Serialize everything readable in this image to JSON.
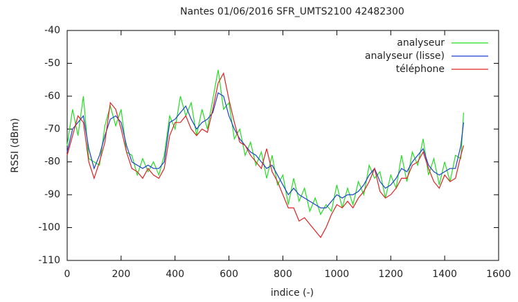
{
  "chart_data": {
    "type": "line",
    "title": "Nantes 01/06/2016 SFR_UMTS2100 42482300",
    "x_label": "indice (-)",
    "y_label": "RSSI (dBm)",
    "xlim": [
      0,
      1600
    ],
    "xticks": [
      0,
      200,
      400,
      600,
      800,
      1000,
      1200,
      1400,
      1600
    ],
    "ylim": [
      -110,
      -40
    ],
    "yticks": [
      -110,
      -100,
      -90,
      -80,
      -70,
      -60,
      -50,
      -40
    ],
    "grid": false,
    "legend": "top-right",
    "x": [
      0,
      20,
      40,
      60,
      80,
      100,
      120,
      140,
      160,
      180,
      200,
      220,
      240,
      260,
      280,
      300,
      320,
      340,
      360,
      380,
      400,
      420,
      440,
      460,
      480,
      500,
      520,
      540,
      560,
      580,
      600,
      620,
      640,
      660,
      680,
      700,
      720,
      740,
      760,
      780,
      800,
      820,
      840,
      860,
      880,
      900,
      920,
      940,
      960,
      980,
      1000,
      1020,
      1040,
      1060,
      1080,
      1100,
      1120,
      1140,
      1160,
      1180,
      1200,
      1220,
      1240,
      1260,
      1280,
      1300,
      1320,
      1340,
      1360,
      1380,
      1400,
      1420,
      1440,
      1460,
      1470
    ],
    "series": [
      {
        "name": "analyseur",
        "color": "#22dd22",
        "values": [
          -75,
          -64,
          -72,
          -60,
          -79,
          -80,
          -81,
          -69,
          -63,
          -69,
          -64,
          -77,
          -78,
          -84,
          -79,
          -83,
          -80,
          -84,
          -78,
          -66,
          -70,
          -60,
          -66,
          -62,
          -72,
          -64,
          -70,
          -61,
          -52,
          -64,
          -62,
          -73,
          -70,
          -78,
          -74,
          -81,
          -77,
          -85,
          -78,
          -87,
          -84,
          -93,
          -85,
          -92,
          -88,
          -95,
          -91,
          -96,
          -93,
          -95,
          -87,
          -94,
          -88,
          -93,
          -86,
          -90,
          -81,
          -85,
          -83,
          -91,
          -84,
          -88,
          -78,
          -86,
          -77,
          -81,
          -73,
          -84,
          -79,
          -87,
          -80,
          -86,
          -78,
          -79,
          -65
        ]
      },
      {
        "name": "analyseur (lisse)",
        "color": "#1a3fcc",
        "values": [
          -77,
          -70,
          -68,
          -66,
          -76,
          -82,
          -78,
          -72,
          -67,
          -66,
          -68,
          -75,
          -80,
          -81,
          -82,
          -81,
          -82,
          -82,
          -80,
          -68,
          -67,
          -65,
          -63,
          -67,
          -70,
          -68,
          -67,
          -65,
          -59,
          -60,
          -66,
          -70,
          -73,
          -75,
          -77,
          -78,
          -80,
          -82,
          -81,
          -84,
          -87,
          -90,
          -88,
          -90,
          -91,
          -92,
          -93,
          -94,
          -94,
          -92,
          -90,
          -91,
          -90,
          -90,
          -89,
          -87,
          -84,
          -82,
          -86,
          -88,
          -87,
          -85,
          -82,
          -83,
          -80,
          -78,
          -76,
          -81,
          -83,
          -84,
          -83,
          -82,
          -82,
          -75,
          -68
        ]
      },
      {
        "name": "téléphone",
        "color": "#e02020",
        "values": [
          -78,
          -72,
          -66,
          -68,
          -80,
          -85,
          -80,
          -74,
          -62,
          -64,
          -70,
          -77,
          -82,
          -83,
          -85,
          -82,
          -84,
          -85,
          -82,
          -72,
          -68,
          -68,
          -66,
          -70,
          -72,
          -70,
          -71,
          -64,
          -56,
          -53,
          -61,
          -68,
          -74,
          -75,
          -78,
          -80,
          -82,
          -76,
          -83,
          -86,
          -90,
          -94,
          -94,
          -98,
          -97,
          -99,
          -101,
          -103,
          -100,
          -96,
          -93,
          -94,
          -92,
          -94,
          -91,
          -89,
          -86,
          -82,
          -89,
          -91,
          -90,
          -88,
          -85,
          -85,
          -81,
          -80,
          -77,
          -82,
          -86,
          -88,
          -84,
          -86,
          -85,
          -78,
          -75
        ]
      }
    ]
  }
}
